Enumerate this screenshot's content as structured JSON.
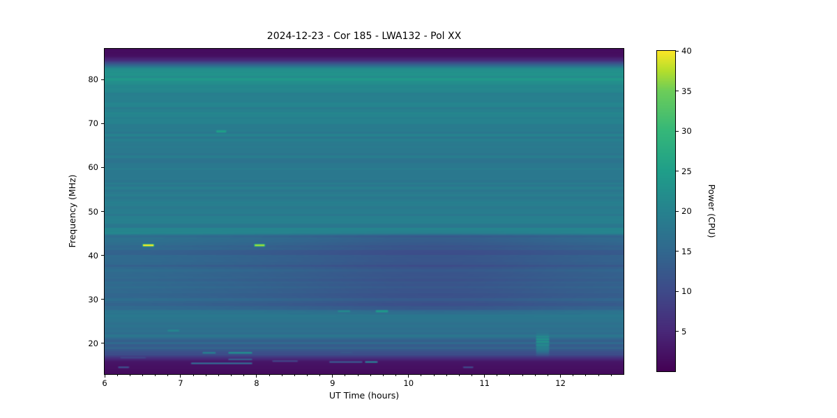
{
  "chart_data": {
    "type": "heatmap",
    "title": "2024-12-23 - Cor 185 - LWA132 - Pol XX",
    "xlabel": "UT Time (hours)",
    "ylabel": "Frequency (MHz)",
    "colorbar_label": "Power (CPU)",
    "x_range": [
      6.0,
      12.83
    ],
    "y_range": [
      13.0,
      87.0
    ],
    "color_range": [
      0,
      40
    ],
    "x_ticks": [
      6,
      7,
      8,
      9,
      10,
      11,
      12
    ],
    "x_minor_step_hours": 0.16667,
    "y_ticks": [
      20,
      30,
      40,
      50,
      60,
      70,
      80
    ],
    "colorbar_ticks": [
      5,
      10,
      15,
      20,
      25,
      30,
      35,
      40
    ],
    "grid": false,
    "legend": "colorbar-right",
    "colormap": "viridis",
    "colormap_stops": [
      [
        0.0,
        "#440154"
      ],
      [
        0.125,
        "#482878"
      ],
      [
        0.25,
        "#3e4a89"
      ],
      [
        0.375,
        "#31688e"
      ],
      [
        0.5,
        "#26828e"
      ],
      [
        0.625,
        "#1f9e89"
      ],
      [
        0.75,
        "#35b779"
      ],
      [
        0.875,
        "#6dcd59"
      ],
      [
        0.9375,
        "#b4de2c"
      ],
      [
        1.0,
        "#fde725"
      ]
    ],
    "background_power_vs_freq": [
      [
        13.0,
        1.4
      ],
      [
        14.8,
        2.0
      ],
      [
        15.8,
        2.8
      ],
      [
        16.6,
        6.0
      ],
      [
        17.6,
        11.0
      ],
      [
        18.8,
        13.5
      ],
      [
        20.6,
        14.3
      ],
      [
        21.5,
        16.6
      ],
      [
        25.3,
        17.0
      ],
      [
        26.3,
        18.8
      ],
      [
        27.6,
        16.2
      ],
      [
        28.6,
        14.3
      ],
      [
        33.0,
        14.1
      ],
      [
        40.0,
        13.6
      ],
      [
        43.6,
        14.6
      ],
      [
        44.6,
        15.8
      ],
      [
        45.1,
        20.0
      ],
      [
        45.9,
        19.2
      ],
      [
        48.0,
        18.8
      ],
      [
        53.0,
        18.5
      ],
      [
        58.0,
        18.2
      ],
      [
        63.0,
        18.4
      ],
      [
        67.0,
        19.0
      ],
      [
        72.0,
        19.4
      ],
      [
        76.0,
        20.0
      ],
      [
        78.6,
        21.0
      ],
      [
        79.4,
        23.0
      ],
      [
        82.4,
        22.6
      ],
      [
        83.4,
        14.0
      ],
      [
        84.4,
        5.5
      ],
      [
        85.3,
        2.0
      ],
      [
        87.0,
        1.2
      ]
    ],
    "stripe_bin_mhz": 0.55,
    "stripe_amplitude": 1.1,
    "mid_band_dip": {
      "freq_range": [
        26,
        46
      ],
      "center_time": 10.35,
      "time_sigma": 1.75,
      "depth": 2.4
    },
    "early_band_boost": {
      "freq_range": [
        27,
        45.5
      ],
      "center_time": 6.0,
      "time_sigma": 1.4,
      "amount": 1.2
    },
    "features": [
      {
        "t": [
          6.49,
          6.66
        ],
        "f": 42.3,
        "df": 0.3,
        "power": 40.0
      },
      {
        "t": [
          7.96,
          8.12
        ],
        "f": 42.3,
        "df": 0.3,
        "power": 37.0
      },
      {
        "t": [
          7.46,
          7.61
        ],
        "f": 68.2,
        "df": 0.28,
        "power": 25.5
      },
      {
        "t": [
          9.56,
          9.74
        ],
        "f": 27.3,
        "df": 0.28,
        "power": 24.0
      },
      {
        "t": [
          9.06,
          9.24
        ],
        "f": 27.3,
        "df": 0.24,
        "power": 21.0
      },
      {
        "t": [
          6.82,
          6.99
        ],
        "f": 22.9,
        "df": 0.25,
        "power": 20.5
      },
      {
        "t": [
          11.67,
          11.86
        ],
        "f": 20.0,
        "df": 2.3,
        "power": 19.5
      },
      {
        "t": [
          11.67,
          11.86
        ],
        "f": 20.35,
        "df": 0.18,
        "power": 23.0
      },
      {
        "t": [
          11.67,
          11.86
        ],
        "f": 20.95,
        "df": 0.18,
        "power": 23.0
      },
      {
        "t": [
          11.67,
          11.86
        ],
        "f": 21.5,
        "df": 0.16,
        "power": 22.0
      },
      {
        "t": [
          11.67,
          11.86
        ],
        "f": 19.6,
        "df": 0.16,
        "power": 21.5
      },
      {
        "t": [
          7.62,
          7.95
        ],
        "f": 17.85,
        "df": 0.22,
        "power": 22.0
      },
      {
        "t": [
          7.28,
          7.47
        ],
        "f": 17.85,
        "df": 0.22,
        "power": 19.0
      },
      {
        "t": [
          7.13,
          7.95
        ],
        "f": 15.45,
        "df": 0.18,
        "power": 16.5
      },
      {
        "t": [
          7.62,
          7.95
        ],
        "f": 16.35,
        "df": 0.2,
        "power": 13.0
      },
      {
        "t": [
          6.17,
          6.33
        ],
        "f": 14.55,
        "df": 0.2,
        "power": 11.0
      },
      {
        "t": [
          6.2,
          6.55
        ],
        "f": 16.75,
        "df": 0.2,
        "power": 9.5
      },
      {
        "t": [
          8.2,
          8.55
        ],
        "f": 15.95,
        "df": 0.18,
        "power": 9.5
      },
      {
        "t": [
          8.95,
          9.4
        ],
        "f": 15.75,
        "df": 0.2,
        "power": 12.0
      },
      {
        "t": [
          9.42,
          9.6
        ],
        "f": 15.75,
        "df": 0.2,
        "power": 19.0
      },
      {
        "t": [
          9.09,
          9.27
        ],
        "f": 17.9,
        "df": 0.2,
        "power": 12.0
      },
      {
        "t": [
          10.71,
          10.86
        ],
        "f": 14.55,
        "df": 0.2,
        "power": 10.0
      }
    ]
  }
}
